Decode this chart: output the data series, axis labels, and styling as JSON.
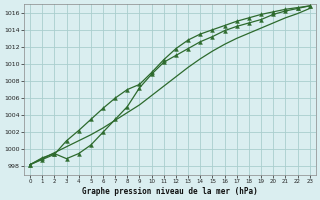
{
  "x": [
    0,
    1,
    2,
    3,
    4,
    5,
    6,
    7,
    8,
    9,
    10,
    11,
    12,
    13,
    14,
    15,
    16,
    17,
    18,
    19,
    20,
    21,
    22,
    23
  ],
  "line1": [
    998.2,
    999.0,
    999.5,
    998.9,
    999.5,
    1000.5,
    1002.0,
    1003.5,
    1005.0,
    1007.2,
    1008.8,
    1010.2,
    1011.0,
    1011.8,
    1012.6,
    1013.2,
    1013.9,
    1014.4,
    1014.8,
    1015.2,
    1015.8,
    1016.2,
    1016.5,
    1016.8
  ],
  "line2": [
    998.2,
    998.8,
    999.4,
    1001.0,
    1002.2,
    1003.5,
    1004.8,
    1006.0,
    1007.0,
    1007.6,
    1009.0,
    1010.5,
    1011.8,
    1012.8,
    1013.5,
    1014.0,
    1014.5,
    1015.0,
    1015.4,
    1015.8,
    1016.1,
    1016.4,
    1016.6,
    1016.8
  ],
  "line3": [
    998.2,
    998.9,
    999.6,
    1000.3,
    1001.0,
    1001.7,
    1002.5,
    1003.4,
    1004.3,
    1005.2,
    1006.3,
    1007.4,
    1008.5,
    1009.6,
    1010.6,
    1011.5,
    1012.3,
    1013.0,
    1013.6,
    1014.2,
    1014.8,
    1015.4,
    1015.9,
    1016.5
  ],
  "bg_color": "#daeef0",
  "grid_color": "#aacece",
  "line_color": "#2d6a2d",
  "marker_color": "#2d6a2d",
  "xlabel": "Graphe pression niveau de la mer (hPa)",
  "ylim": [
    997,
    1017
  ],
  "xlim": [
    -0.5,
    23.5
  ],
  "yticks": [
    998,
    1000,
    1002,
    1004,
    1006,
    1008,
    1010,
    1012,
    1014,
    1016
  ],
  "xticks": [
    0,
    1,
    2,
    3,
    4,
    5,
    6,
    7,
    8,
    9,
    10,
    11,
    12,
    13,
    14,
    15,
    16,
    17,
    18,
    19,
    20,
    21,
    22,
    23
  ]
}
